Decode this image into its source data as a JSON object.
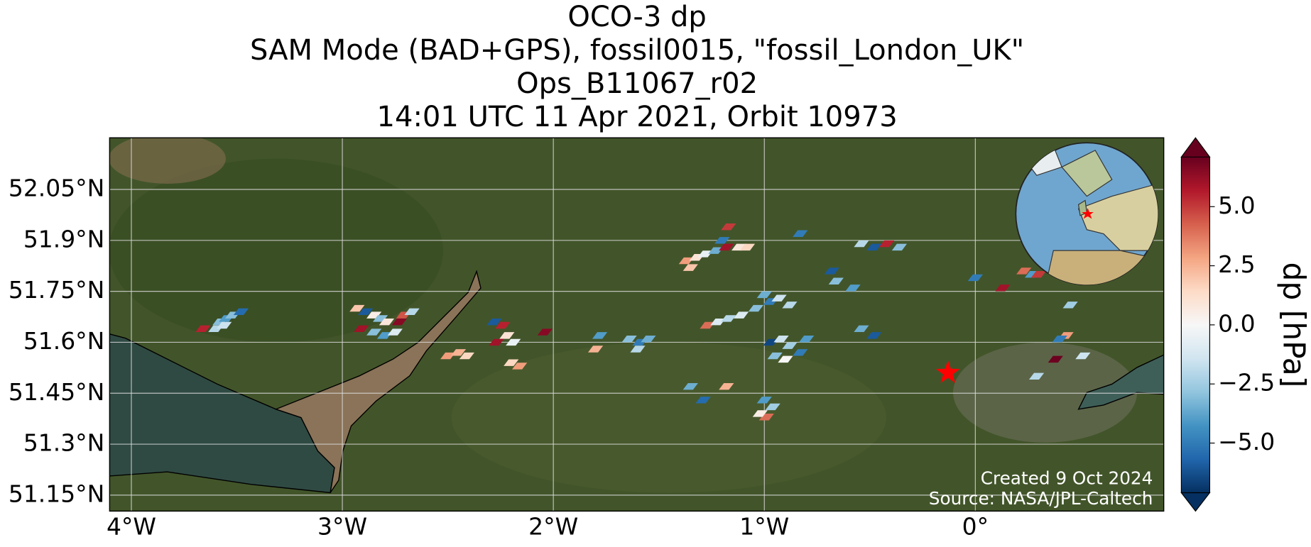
{
  "chart_data": {
    "type": "scatter",
    "title": [
      "OCO-3 dp",
      "SAM Mode (BAD+GPS), fossil0015, \"fossil_London_UK\"",
      "Ops_B11067_r02",
      "14:01 UTC 11 Apr 2021, Orbit 10973"
    ],
    "xlim": [
      -4.103,
      0.893
    ],
    "ylim": [
      51.103,
      52.202
    ],
    "xticks": [
      {
        "value": -4,
        "label": "4°W"
      },
      {
        "value": -3,
        "label": "3°W"
      },
      {
        "value": -2,
        "label": "2°W"
      },
      {
        "value": -1,
        "label": "1°W"
      },
      {
        "value": 0,
        "label": "0°"
      }
    ],
    "yticks": [
      {
        "value": 51.15,
        "label": "51.15°N"
      },
      {
        "value": 51.3,
        "label": "51.3°N"
      },
      {
        "value": 51.45,
        "label": "51.45°N"
      },
      {
        "value": 51.6,
        "label": "51.6°N"
      },
      {
        "value": 51.75,
        "label": "51.75°N"
      },
      {
        "value": 51.9,
        "label": "51.9°N"
      },
      {
        "value": 52.05,
        "label": "52.05°N"
      }
    ],
    "grid": true,
    "x": [
      -3.66,
      -3.6,
      -3.58,
      -3.55,
      -3.52,
      -3.48,
      -3.56,
      -2.93,
      -2.89,
      -2.85,
      -2.82,
      -2.79,
      -2.91,
      -2.85,
      -2.8,
      -2.71,
      -2.67,
      -2.73,
      -2.75,
      -2.5,
      -2.45,
      -2.41,
      -2.28,
      -2.24,
      -2.22,
      -2.19,
      -2.27,
      -2.2,
      -2.16,
      -2.04,
      -1.8,
      -1.78,
      -1.64,
      -1.59,
      -1.55,
      -1.6,
      -1.37,
      -1.32,
      -1.28,
      -1.23,
      -1.18,
      -1.12,
      -1.08,
      -1.35,
      -1.2,
      -1.17,
      -1.27,
      -1.22,
      -1.17,
      -1.11,
      -1.04,
      -0.97,
      -0.93,
      -0.88,
      -1.0,
      -0.97,
      -0.92,
      -0.88,
      -0.83,
      -0.95,
      -0.9,
      -0.8,
      -0.83,
      -0.68,
      -0.66,
      -0.58,
      -0.54,
      -0.48,
      -0.42,
      -0.36,
      -0.54,
      -0.48,
      -1.35,
      -1.29,
      -1.18,
      -1.0,
      -0.96,
      -0.99,
      -1.02,
      0.0,
      0.13,
      0.23,
      0.27,
      0.3,
      0.45,
      0.43,
      0.4,
      0.38,
      0.29,
      0.51
    ],
    "y": [
      51.64,
      51.64,
      51.66,
      51.67,
      51.68,
      51.69,
      51.65,
      51.7,
      51.69,
      51.68,
      51.67,
      51.66,
      51.64,
      51.63,
      51.62,
      51.68,
      51.69,
      51.66,
      51.63,
      51.56,
      51.57,
      51.56,
      51.66,
      51.65,
      51.62,
      51.6,
      51.6,
      51.54,
      51.53,
      51.63,
      51.58,
      51.62,
      51.61,
      51.6,
      51.61,
      51.58,
      51.84,
      51.85,
      51.86,
      51.87,
      51.88,
      51.88,
      51.88,
      51.82,
      51.9,
      51.94,
      51.65,
      51.66,
      51.67,
      51.68,
      51.7,
      51.72,
      51.73,
      51.71,
      51.74,
      51.6,
      51.61,
      51.59,
      51.57,
      51.56,
      51.55,
      51.61,
      51.92,
      51.81,
      51.78,
      51.76,
      51.89,
      51.88,
      51.89,
      51.88,
      51.64,
      51.62,
      51.47,
      51.43,
      51.47,
      51.43,
      51.41,
      51.38,
      51.39,
      51.79,
      51.76,
      51.81,
      51.8,
      51.8,
      51.71,
      51.62,
      51.61,
      51.55,
      51.5,
      51.56
    ],
    "values": [
      5.5,
      -2,
      -3,
      -4,
      -3,
      -5.5,
      -1.5,
      2,
      -6,
      0.5,
      -3,
      0.8,
      6,
      -3,
      -4,
      4.5,
      -2,
      6.5,
      -1,
      3,
      2.5,
      1.5,
      -6,
      5.5,
      1,
      -0.5,
      6,
      1.5,
      3,
      6.5,
      2.5,
      -4,
      -3,
      -5,
      -3.5,
      -2,
      3,
      1,
      -0.5,
      -3.5,
      6,
      0.8,
      1.5,
      2,
      -5,
      5,
      4,
      -1,
      -2,
      -1,
      -3,
      -5,
      -1.5,
      -2,
      -3.5,
      -6.5,
      -1.5,
      -2.5,
      -5,
      -3,
      0,
      -4,
      -5,
      -6,
      -3,
      -4,
      -2,
      -6,
      5.5,
      -3,
      -3.5,
      -6,
      -3.5,
      -5.5,
      2.5,
      -4,
      -2.5,
      4,
      0.5,
      -5,
      6,
      4,
      -4,
      5,
      -2.5,
      3,
      -5,
      7,
      -2,
      -1.5
    ],
    "marker": {
      "x": -0.13,
      "y": 51.51,
      "color": "#ff0000"
    },
    "clim": [
      -7.1,
      7.1
    ],
    "cticks": [
      {
        "value": -5,
        "label": "−5.0"
      },
      {
        "value": -2.5,
        "label": "−2.5"
      },
      {
        "value": 0,
        "label": "0.0"
      },
      {
        "value": 2.5,
        "label": "2.5"
      },
      {
        "value": 5,
        "label": "5.0"
      }
    ],
    "cmap_colors": [
      "#053061",
      "#2166ac",
      "#4393c3",
      "#92c5de",
      "#d1e5f0",
      "#f7f7f7",
      "#fddbc7",
      "#f4a582",
      "#d6604d",
      "#b2182b",
      "#67001f"
    ],
    "colorbar_label": "dp [hPa]",
    "annotations": [
      "Created 9 Oct 2024",
      "Source: NASA/JPL-Caltech"
    ]
  }
}
